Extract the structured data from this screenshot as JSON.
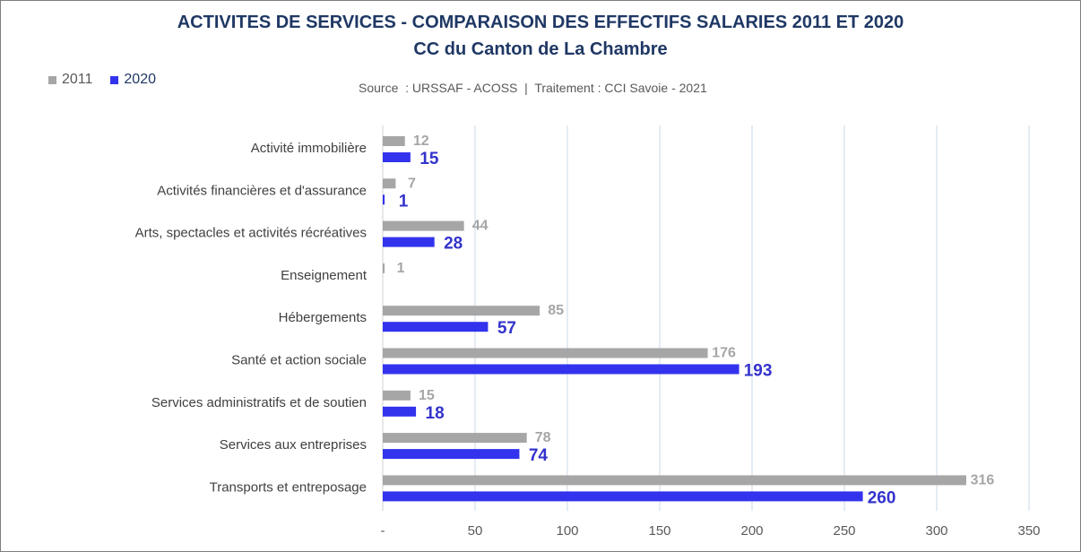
{
  "title_line1": "ACTIVITES DE SERVICES - COMPARAISON DES EFFECTIFS SALARIES 2011 ET 2020",
  "title_line2": "CC du Canton de La Chambre",
  "source": "Source  : URSSAF - ACOSS  |  Traitement : CCI Savoie - 2021",
  "legend": [
    {
      "label": "2011",
      "color": "#a6a6a6"
    },
    {
      "label": "2020",
      "color": "#3333ee"
    }
  ],
  "chart_data": {
    "type": "bar",
    "orientation": "horizontal",
    "title": "ACTIVITES DE SERVICES - COMPARAISON DES EFFECTIFS SALARIES 2011 ET 2020",
    "subtitle": "CC du Canton de La Chambre",
    "categories": [
      "Activité immobilière",
      "Activités financières et d'assurance",
      "Arts, spectacles et activités récréatives",
      "Enseignement",
      "Hébergements",
      "Santé et action sociale",
      "Services administratifs et de soutien",
      "Services aux entreprises",
      "Transports et entreposage"
    ],
    "series": [
      {
        "name": "2011",
        "color": "#a6a6a6",
        "label_color": "#a6a6a6",
        "values": [
          12,
          7,
          44,
          1,
          85,
          176,
          15,
          78,
          316
        ],
        "labels": [
          "12",
          "7",
          "44",
          "1",
          "85",
          "176",
          "15",
          "78",
          "316"
        ]
      },
      {
        "name": "2020",
        "color": "#3333ee",
        "label_color": "#3333cc",
        "values": [
          15,
          1,
          28,
          null,
          57,
          193,
          18,
          74,
          260
        ],
        "labels": [
          "15",
          "1",
          "28",
          "",
          "57",
          "193",
          "18",
          "74",
          "260"
        ]
      }
    ],
    "xlim": [
      0,
      350
    ],
    "xticks": [
      0,
      50,
      100,
      150,
      200,
      250,
      300,
      350
    ],
    "xtick_labels": [
      "-",
      "50",
      "100",
      "150",
      "200",
      "250",
      "300",
      "350"
    ],
    "grid": true,
    "legend_position": "top-left",
    "xlabel": "",
    "ylabel": ""
  }
}
